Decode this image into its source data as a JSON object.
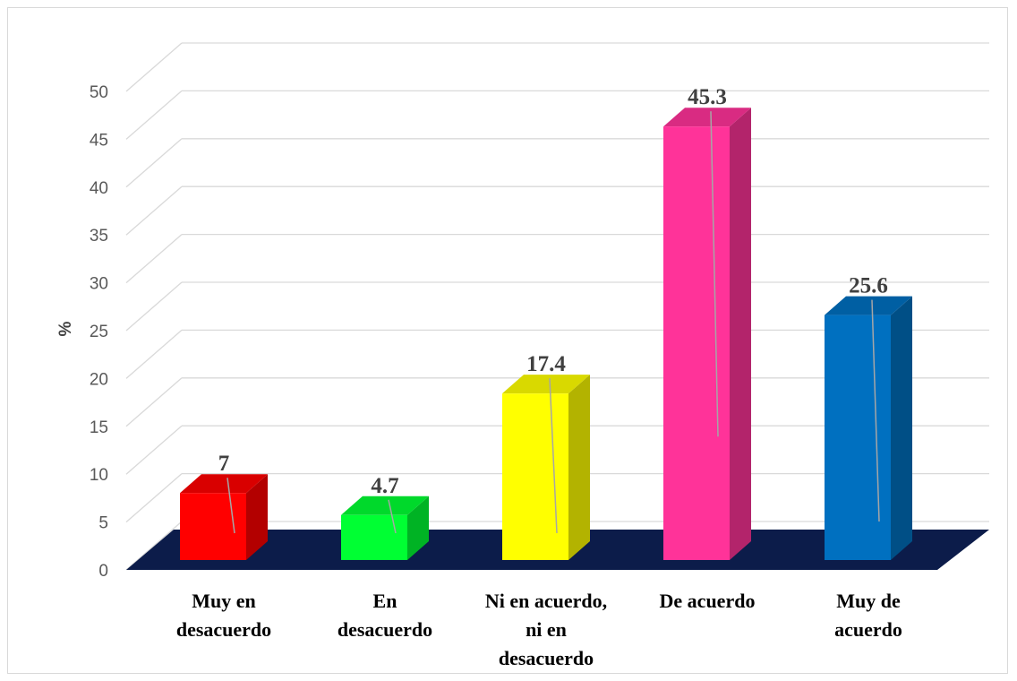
{
  "chart_data": {
    "type": "bar",
    "style": "3d-column",
    "categories": [
      [
        "Muy en",
        "desacuerdo"
      ],
      [
        "En",
        "desacuerdo"
      ],
      [
        "Ni en acuerdo,",
        "ni en",
        "desacuerdo"
      ],
      [
        "De acuerdo"
      ],
      [
        "Muy de",
        "acuerdo"
      ]
    ],
    "values": [
      7,
      4.7,
      17.4,
      45.3,
      25.6
    ],
    "data_labels": [
      "7",
      "4.7",
      "17.4",
      "45.3",
      "25.6"
    ],
    "colors": [
      {
        "front": "#ff0000",
        "side": "#b30000",
        "top": "#d90000"
      },
      {
        "front": "#00ff33",
        "side": "#00b324",
        "top": "#00d92b"
      },
      {
        "front": "#ffff00",
        "side": "#b3b300",
        "top": "#d9d900"
      },
      {
        "front": "#ff3399",
        "side": "#b3246b",
        "top": "#d92b82"
      },
      {
        "front": "#0070c0",
        "side": "#004f86",
        "top": "#005fa3"
      }
    ],
    "floor_color": "#0c1c4a",
    "title": "",
    "xlabel": "",
    "ylabel": "%",
    "ylim": [
      0,
      50
    ],
    "yticks": [
      0,
      5,
      10,
      15,
      20,
      25,
      30,
      35,
      40,
      45,
      50
    ],
    "grid": true,
    "legend": "none"
  }
}
